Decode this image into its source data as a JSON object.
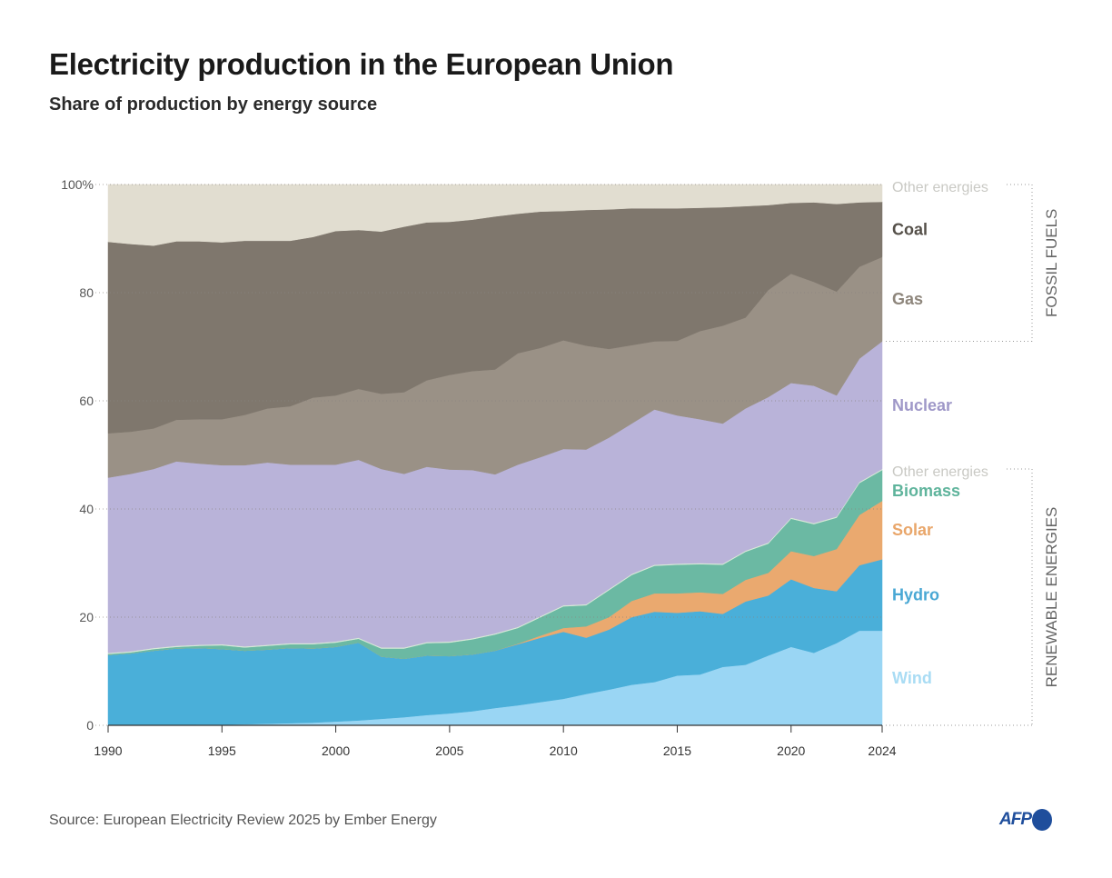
{
  "header": {
    "title": "Electricity production in the European Union",
    "subtitle": "Share of production by energy source"
  },
  "footer": {
    "source": "Source: European Electricity Review 2025 by Ember Energy",
    "logo_text": "AFP"
  },
  "chart_data": {
    "type": "area",
    "stacked": true,
    "title": "Electricity production in the European Union",
    "subtitle": "Share of production by energy source",
    "xlabel": "",
    "ylabel": "",
    "xlim": [
      1990,
      2024
    ],
    "ylim": [
      0,
      100
    ],
    "y_ticks": [
      0,
      20,
      40,
      60,
      80,
      100
    ],
    "y_tick_labels": [
      "0",
      "20",
      "40",
      "60",
      "80",
      "100%"
    ],
    "x_ticks": [
      1990,
      1995,
      2000,
      2005,
      2010,
      2015,
      2020,
      2024
    ],
    "x_tick_labels": [
      "1990",
      "1995",
      "2000",
      "2005",
      "2010",
      "2015",
      "2020",
      "2024"
    ],
    "grid": "horizontal dotted",
    "legend": "right, direct labels",
    "groups": [
      {
        "label": "FOSSIL FUELS",
        "series": [
          "Other energies (fossil)",
          "Coal",
          "Gas"
        ]
      },
      {
        "label": "RENEWABLE ENERGIES",
        "series": [
          "Other energies (renewable)",
          "Biomass",
          "Solar",
          "Hydro",
          "Wind"
        ]
      }
    ],
    "x": [
      1990,
      1991,
      1992,
      1993,
      1994,
      1995,
      1996,
      1997,
      1998,
      1999,
      2000,
      2001,
      2002,
      2003,
      2004,
      2005,
      2006,
      2007,
      2008,
      2009,
      2010,
      2011,
      2012,
      2013,
      2014,
      2015,
      2016,
      2017,
      2018,
      2019,
      2020,
      2021,
      2022,
      2023,
      2024
    ],
    "series": [
      {
        "name": "Wind",
        "label": "Wind",
        "color": "#9ad6f4",
        "label_color": "#a9dcf4",
        "values": [
          0,
          0,
          0,
          0,
          0.1,
          0.1,
          0.2,
          0.3,
          0.4,
          0.5,
          0.7,
          0.9,
          1.2,
          1.5,
          1.9,
          2.2,
          2.6,
          3.2,
          3.7,
          4.3,
          4.9,
          5.8,
          6.6,
          7.5,
          8.0,
          9.2,
          9.4,
          10.8,
          11.2,
          12.9,
          14.5,
          13.4,
          15.2,
          17.5,
          17.5
        ]
      },
      {
        "name": "Hydro",
        "label": "Hydro",
        "color": "#4aafd9",
        "label_color": "#4aa8d4",
        "values": [
          13.0,
          13.3,
          13.8,
          14.2,
          14.2,
          14.0,
          13.6,
          13.7,
          13.9,
          13.7,
          13.8,
          14.4,
          11.5,
          10.8,
          11.0,
          10.6,
          10.5,
          10.6,
          11.3,
          11.9,
          12.4,
          10.4,
          11.1,
          12.5,
          13.0,
          11.6,
          11.7,
          9.8,
          11.7,
          11.1,
          12.5,
          12.0,
          9.6,
          12.1,
          13.2
        ]
      },
      {
        "name": "Solar",
        "label": "Solar",
        "color": "#eaa96f",
        "label_color": "#e9a66a",
        "values": [
          0,
          0,
          0,
          0,
          0,
          0,
          0,
          0,
          0,
          0,
          0,
          0,
          0,
          0,
          0,
          0,
          0,
          0,
          0.1,
          0.4,
          0.7,
          2.1,
          2.3,
          3.0,
          3.4,
          3.6,
          3.5,
          3.7,
          4.0,
          4.2,
          5.2,
          5.9,
          7.8,
          9.3,
          10.8
        ]
      },
      {
        "name": "Biomass",
        "label": "Biomass",
        "color": "#6bb9a3",
        "label_color": "#5fb49c",
        "values": [
          0.2,
          0.2,
          0.3,
          0.3,
          0.4,
          0.7,
          0.6,
          0.7,
          0.7,
          0.8,
          0.8,
          0.7,
          1.5,
          1.9,
          2.3,
          2.5,
          2.8,
          3.0,
          2.9,
          3.4,
          4.0,
          3.9,
          5.0,
          4.8,
          5.1,
          5.3,
          5.2,
          5.4,
          5.2,
          5.4,
          6.0,
          5.9,
          5.8,
          5.9,
          5.7
        ]
      },
      {
        "name": "Other energies (renewable)",
        "label": "Other energies",
        "color": "#d8ead8",
        "label_color": "#c9c9c4",
        "values": [
          0.2,
          0.2,
          0.2,
          0.2,
          0.2,
          0.2,
          0.2,
          0.2,
          0.2,
          0.2,
          0.2,
          0.2,
          0.2,
          0.2,
          0.2,
          0.2,
          0.2,
          0.2,
          0.2,
          0.2,
          0.2,
          0.2,
          0.2,
          0.2,
          0.2,
          0.2,
          0.2,
          0.2,
          0.2,
          0.2,
          0.2,
          0.2,
          0.2,
          0.2,
          0.2
        ]
      },
      {
        "name": "Nuclear",
        "label": "Nuclear",
        "color": "#b9b3d9",
        "label_color": "#9f98c8",
        "values": [
          32.4,
          32.8,
          33.1,
          34.1,
          33.5,
          33.1,
          33.5,
          33.7,
          33.0,
          33.0,
          32.7,
          32.9,
          33.0,
          32.1,
          32.4,
          31.8,
          31.1,
          29.4,
          30.0,
          29.4,
          28.9,
          28.6,
          28.0,
          27.8,
          28.7,
          27.4,
          26.6,
          25.9,
          26.3,
          26.9,
          24.9,
          25.4,
          22.4,
          22.8,
          23.6
        ]
      },
      {
        "name": "Gas",
        "label": "Gas",
        "color": "#9a9186",
        "label_color": "#8e867c",
        "values": [
          8.2,
          7.8,
          7.5,
          7.7,
          8.2,
          8.5,
          9.3,
          10.0,
          10.8,
          12.4,
          12.8,
          13.1,
          13.9,
          15.1,
          16.0,
          17.5,
          18.3,
          19.4,
          20.6,
          20.2,
          20.1,
          19.2,
          16.4,
          14.5,
          12.6,
          13.8,
          16.3,
          18.1,
          16.8,
          19.8,
          20.2,
          19.2,
          19.2,
          17.0,
          15.6
        ]
      },
      {
        "name": "Coal",
        "label": "Coal",
        "color": "#7f776d",
        "label_color": "#555049",
        "values": [
          35.4,
          34.7,
          33.8,
          33.0,
          32.9,
          32.7,
          32.2,
          31.0,
          30.6,
          29.7,
          30.4,
          29.4,
          30.0,
          30.6,
          29.2,
          28.3,
          28.0,
          28.3,
          25.8,
          25.2,
          23.9,
          25.1,
          25.8,
          25.3,
          24.6,
          24.5,
          22.8,
          21.9,
          20.6,
          15.7,
          13.1,
          14.7,
          16.2,
          11.9,
          10.2
        ]
      },
      {
        "name": "Other energies (fossil)",
        "label": "Other energies",
        "color": "#e1ddd0",
        "label_color": "#c9c9c4",
        "values": [
          10.6,
          11.0,
          11.3,
          10.5,
          10.5,
          10.7,
          10.4,
          10.4,
          10.4,
          9.7,
          8.6,
          8.4,
          8.7,
          7.8,
          7.0,
          6.9,
          6.5,
          5.9,
          5.4,
          5.0,
          4.9,
          4.7,
          4.6,
          4.4,
          4.4,
          4.4,
          4.3,
          4.2,
          4.0,
          3.8,
          3.4,
          3.3,
          3.6,
          3.3,
          3.2
        ]
      }
    ]
  }
}
